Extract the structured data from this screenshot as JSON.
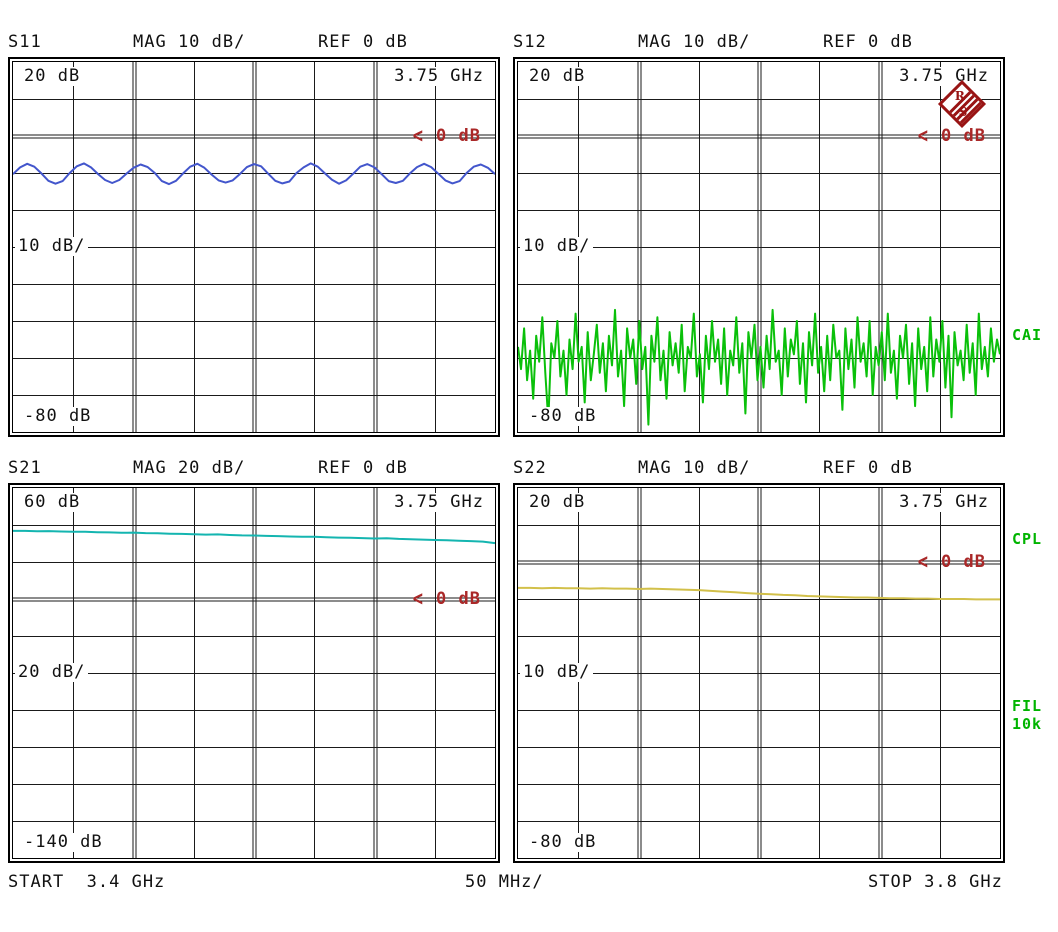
{
  "colors": {
    "background": "#ffffff",
    "grid_line": "#1a1a1a",
    "text": "#111111",
    "marker_red": "#aa2828",
    "logo_red": "#991414",
    "status_green": "#00b400",
    "trace_s11": "#4356cc",
    "trace_s12": "#0ac00a",
    "trace_s21": "#14b5b0",
    "trace_s22": "#d2c04a"
  },
  "logo": {
    "r": "R",
    "s": "S"
  },
  "side_labels": [
    {
      "text": "CAI"
    },
    {
      "text": "CPL"
    },
    {
      "text": "FIL"
    },
    {
      "text": "10k"
    }
  ],
  "footer": {
    "start": "START  3.4 GHz",
    "per_div": "50 MHz/",
    "stop": "STOP 3.8 GHz"
  },
  "chart_data": [
    {
      "id": "s11",
      "type": "line",
      "header": {
        "trace": "S11",
        "scale": "MAG 10 dB/",
        "ref": "REF 0 dB"
      },
      "labels": {
        "top": "20 dB",
        "freq": "3.75 GHz",
        "center": "10 dB/",
        "bottom": "-80 dB"
      },
      "marker": {
        "arrow": "<",
        "label": "0 dB"
      },
      "grid": {
        "cols": 8,
        "rows": 10,
        "top_db": 20,
        "db_per_div": 10,
        "ref_db": 0,
        "ref_row": 2
      },
      "x_ghz": {
        "start": 3.4,
        "stop": 3.8,
        "per_div_mhz": 50
      },
      "color": "#4356cc",
      "values_db": [
        -10.3,
        -8.5,
        -7.5,
        -8.3,
        -10.1,
        -12.1,
        -12.9,
        -12.2,
        -10.0,
        -8.2,
        -7.4,
        -8.5,
        -10.3,
        -11.9,
        -12.7,
        -11.9,
        -10.2,
        -8.6,
        -7.7,
        -8.4,
        -10.0,
        -12.2,
        -13.0,
        -12.1,
        -10.1,
        -8.3,
        -7.5,
        -8.6,
        -10.4,
        -12.0,
        -12.6,
        -12.0,
        -10.3,
        -8.4,
        -7.6,
        -8.2,
        -10.2,
        -12.1,
        -12.8,
        -12.3,
        -10.0,
        -8.5,
        -7.4,
        -8.3,
        -10.1,
        -11.8,
        -12.9,
        -12.0,
        -10.2,
        -8.3,
        -7.6,
        -8.5,
        -10.3,
        -12.2,
        -12.7,
        -12.1,
        -10.1,
        -8.4,
        -7.5,
        -8.4,
        -10.2,
        -12.0,
        -12.8,
        -12.2,
        -10.0,
        -8.3,
        -7.7,
        -8.6,
        -10.3
      ]
    },
    {
      "id": "s12",
      "type": "line",
      "header": {
        "trace": "S12",
        "scale": "MAG 10 dB/",
        "ref": "REF 0 dB"
      },
      "labels": {
        "top": "20 dB",
        "freq": "3.75 GHz",
        "center": "10 dB/",
        "bottom": "-80 dB"
      },
      "marker": {
        "arrow": "<",
        "label": "0 dB"
      },
      "grid": {
        "cols": 8,
        "rows": 10,
        "top_db": 20,
        "db_per_div": 10,
        "ref_db": 0,
        "ref_row": 2
      },
      "x_ghz": {
        "start": 3.4,
        "stop": 3.8,
        "per_div_mhz": 50
      },
      "color": "#0ac00a",
      "values_db": [
        -57,
        -63,
        -52,
        -66,
        -58,
        -71,
        -54,
        -61,
        -49,
        -64,
        -77,
        -56,
        -60,
        -50,
        -65,
        -58,
        -70,
        -55,
        -63,
        -48,
        -61,
        -57,
        -72,
        -53,
        -66,
        -59,
        -51,
        -64,
        -56,
        -69,
        -54,
        -62,
        -47,
        -65,
        -58,
        -73,
        -52,
        -60,
        -55,
        -67,
        -50,
        -63,
        -57,
        -78,
        -54,
        -61,
        -49,
        -66,
        -58,
        -71,
        -53,
        -62,
        -56,
        -64,
        -51,
        -69,
        -57,
        -60,
        -48,
        -65,
        -59,
        -72,
        -54,
        -63,
        -50,
        -61,
        -55,
        -67,
        -52,
        -70,
        -58,
        -62,
        -49,
        -64,
        -56,
        -75,
        -53,
        -60,
        -51,
        -66,
        -57,
        -68,
        -54,
        -63,
        -47,
        -61,
        -58,
        -70,
        -52,
        -65,
        -55,
        -59,
        -50,
        -67,
        -56,
        -72,
        -53,
        -62,
        -48,
        -64,
        -57,
        -69,
        -54,
        -66,
        -51,
        -60,
        -58,
        -74,
        -52,
        -63,
        -55,
        -68,
        -49,
        -61,
        -56,
        -65,
        -50,
        -70,
        -57,
        -62,
        -53,
        -66,
        -48,
        -64,
        -58,
        -71,
        -54,
        -60,
        -51,
        -67,
        -56,
        -73,
        -52,
        -63,
        -57,
        -69,
        -49,
        -65,
        -55,
        -61,
        -50,
        -68,
        -54,
        -76,
        -53,
        -62,
        -58,
        -66,
        -51,
        -64,
        -56,
        -70,
        -48,
        -63,
        -57,
        -65,
        -52,
        -61,
        -55,
        -59
      ]
    },
    {
      "id": "s21",
      "type": "line",
      "header": {
        "trace": "S21",
        "scale": "MAG 20 dB/",
        "ref": "REF 0 dB"
      },
      "labels": {
        "top": "60 dB",
        "freq": "3.75 GHz",
        "center": "20 dB/",
        "bottom": "-140 dB"
      },
      "marker": {
        "arrow": "<",
        "label": "0 dB"
      },
      "grid": {
        "cols": 8,
        "rows": 10,
        "top_db": 60,
        "db_per_div": 20,
        "ref_db": 0,
        "ref_row": 3
      },
      "x_ghz": {
        "start": 3.4,
        "stop": 3.8,
        "per_div_mhz": 50
      },
      "color": "#14b5b0",
      "values_db": [
        36.8,
        36.8,
        36.6,
        36.7,
        36.5,
        36.3,
        36.3,
        36.1,
        36.0,
        35.8,
        35.9,
        35.6,
        35.5,
        35.3,
        35.2,
        35.0,
        34.8,
        34.9,
        34.6,
        34.4,
        34.3,
        34.1,
        34.0,
        33.8,
        33.6,
        33.7,
        33.4,
        33.2,
        33.1,
        32.9,
        32.7,
        32.8,
        32.5,
        32.3,
        32.1,
        31.9,
        31.8,
        31.5,
        31.3,
        31.0,
        30.2
      ]
    },
    {
      "id": "s22",
      "type": "line",
      "header": {
        "trace": "S22",
        "scale": "MAG 10 dB/",
        "ref": "REF 0 dB"
      },
      "labels": {
        "top": "20 dB",
        "freq": "3.75 GHz",
        "center": "10 dB/",
        "bottom": "-80 dB"
      },
      "marker": {
        "arrow": "<",
        "label": "0 dB"
      },
      "grid": {
        "cols": 8,
        "rows": 10,
        "top_db": 20,
        "db_per_div": 10,
        "ref_db": 0,
        "ref_row": 2
      },
      "x_ghz": {
        "start": 3.4,
        "stop": 3.8,
        "per_div_mhz": 50
      },
      "color": "#d2c04a",
      "values_db": [
        -7.0,
        -7.0,
        -7.1,
        -7.0,
        -7.1,
        -7.1,
        -7.2,
        -7.1,
        -7.2,
        -7.2,
        -7.3,
        -7.2,
        -7.3,
        -7.4,
        -7.5,
        -7.6,
        -7.8,
        -8.0,
        -8.2,
        -8.4,
        -8.6,
        -8.7,
        -8.9,
        -9.0,
        -9.2,
        -9.3,
        -9.4,
        -9.5,
        -9.6,
        -9.6,
        -9.7,
        -9.8,
        -9.8,
        -9.9,
        -9.9,
        -10.0,
        -10.0,
        -10.0,
        -10.1,
        -10.1,
        -10.1
      ]
    }
  ]
}
